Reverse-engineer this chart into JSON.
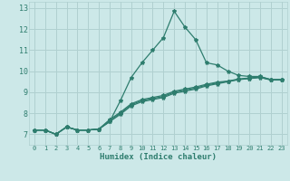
{
  "title": "",
  "xlabel": "Humidex (Indice chaleur)",
  "bg_color": "#cce8e8",
  "line_color": "#2e7d6e",
  "grid_color": "#b0d0d0",
  "xlim": [
    -0.5,
    23.5
  ],
  "ylim": [
    6.5,
    13.3
  ],
  "xticks": [
    0,
    1,
    2,
    3,
    4,
    5,
    6,
    7,
    8,
    9,
    10,
    11,
    12,
    13,
    14,
    15,
    16,
    17,
    18,
    19,
    20,
    21,
    22,
    23
  ],
  "yticks": [
    7,
    8,
    9,
    10,
    11,
    12,
    13
  ],
  "lines": [
    {
      "x": [
        0,
        1,
        2,
        3,
        4,
        5,
        6,
        7,
        8,
        9,
        10,
        11,
        12,
        13,
        14,
        15,
        16,
        17,
        18,
        19,
        20,
        21,
        22,
        23
      ],
      "y": [
        7.2,
        7.2,
        7.0,
        7.35,
        7.2,
        7.2,
        7.25,
        7.6,
        8.6,
        9.7,
        10.4,
        11.0,
        11.6,
        12.85,
        12.1,
        11.5,
        10.4,
        10.3,
        10.0,
        9.8,
        9.75,
        9.75,
        9.6,
        9.6
      ]
    },
    {
      "x": [
        0,
        1,
        2,
        3,
        4,
        5,
        6,
        7,
        8,
        9,
        10,
        11,
        12,
        13,
        14,
        15,
        16,
        17,
        18,
        19,
        20,
        21,
        22,
        23
      ],
      "y": [
        7.2,
        7.2,
        7.0,
        7.35,
        7.2,
        7.2,
        7.25,
        7.6,
        7.95,
        8.35,
        8.55,
        8.65,
        8.75,
        8.95,
        9.05,
        9.15,
        9.3,
        9.4,
        9.5,
        9.6,
        9.65,
        9.7,
        9.58,
        9.58
      ]
    },
    {
      "x": [
        0,
        1,
        2,
        3,
        4,
        5,
        6,
        7,
        8,
        9,
        10,
        11,
        12,
        13,
        14,
        15,
        16,
        17,
        18,
        19,
        20,
        21,
        22,
        23
      ],
      "y": [
        7.2,
        7.2,
        7.0,
        7.35,
        7.2,
        7.2,
        7.25,
        7.7,
        8.05,
        8.45,
        8.65,
        8.75,
        8.85,
        9.05,
        9.15,
        9.25,
        9.38,
        9.48,
        9.53,
        9.63,
        9.68,
        9.73,
        9.6,
        9.6
      ]
    },
    {
      "x": [
        0,
        1,
        2,
        3,
        4,
        5,
        6,
        7,
        8,
        9,
        10,
        11,
        12,
        13,
        14,
        15,
        16,
        17,
        18,
        19,
        20,
        21,
        22,
        23
      ],
      "y": [
        7.2,
        7.2,
        7.0,
        7.35,
        7.2,
        7.2,
        7.25,
        7.65,
        8.0,
        8.4,
        8.6,
        8.7,
        8.8,
        9.0,
        9.1,
        9.2,
        9.34,
        9.44,
        9.52,
        9.61,
        9.66,
        9.71,
        9.59,
        9.59
      ]
    }
  ]
}
